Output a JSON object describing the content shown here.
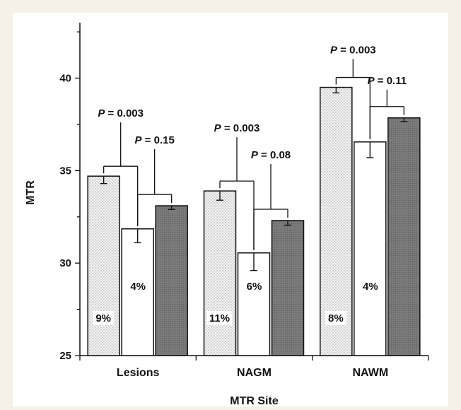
{
  "chart_data": {
    "type": "bar",
    "xlabel": "MTR Site",
    "ylabel": "MTR",
    "ylim": [
      25,
      43
    ],
    "yticks": [
      25,
      30,
      35,
      40
    ],
    "categories": [
      "Lesions",
      "NAGM",
      "NAWM"
    ],
    "series": [
      {
        "values": [
          34.7,
          33.9,
          39.5
        ],
        "errors": [
          0.4,
          0.5,
          0.3
        ],
        "fill": "dotted-light"
      },
      {
        "values": [
          31.85,
          30.55,
          36.55
        ],
        "errors": [
          0.75,
          0.95,
          0.85
        ],
        "fill": "white"
      },
      {
        "values": [
          33.1,
          32.3,
          37.85
        ],
        "errors": [
          0.2,
          0.25,
          0.2
        ],
        "fill": "dark-hatched"
      }
    ],
    "percent_labels": [
      {
        "category": "Lesions",
        "pair": "first",
        "text": "9%"
      },
      {
        "category": "Lesions",
        "pair": "second",
        "text": "4%"
      },
      {
        "category": "NAGM",
        "pair": "first",
        "text": "11%"
      },
      {
        "category": "NAGM",
        "pair": "second",
        "text": "6%"
      },
      {
        "category": "NAWM",
        "pair": "first",
        "text": "8%"
      },
      {
        "category": "NAWM",
        "pair": "second",
        "text": "4%"
      }
    ],
    "p_values": [
      {
        "category": "Lesions",
        "pair": "first",
        "text": "P = 0.003"
      },
      {
        "category": "Lesions",
        "pair": "second",
        "text": "P = 0.15"
      },
      {
        "category": "NAGM",
        "pair": "first",
        "text": "P = 0.003"
      },
      {
        "category": "NAGM",
        "pair": "second",
        "text": "P = 0.08"
      },
      {
        "category": "NAWM",
        "pair": "first",
        "text": "P = 0.003"
      },
      {
        "category": "NAWM",
        "pair": "second",
        "text": "P = 0.11"
      }
    ],
    "colors": {
      "dark_bar": "#7a7a7a",
      "light_bar": "#ffffff",
      "outline": "#111111"
    }
  }
}
